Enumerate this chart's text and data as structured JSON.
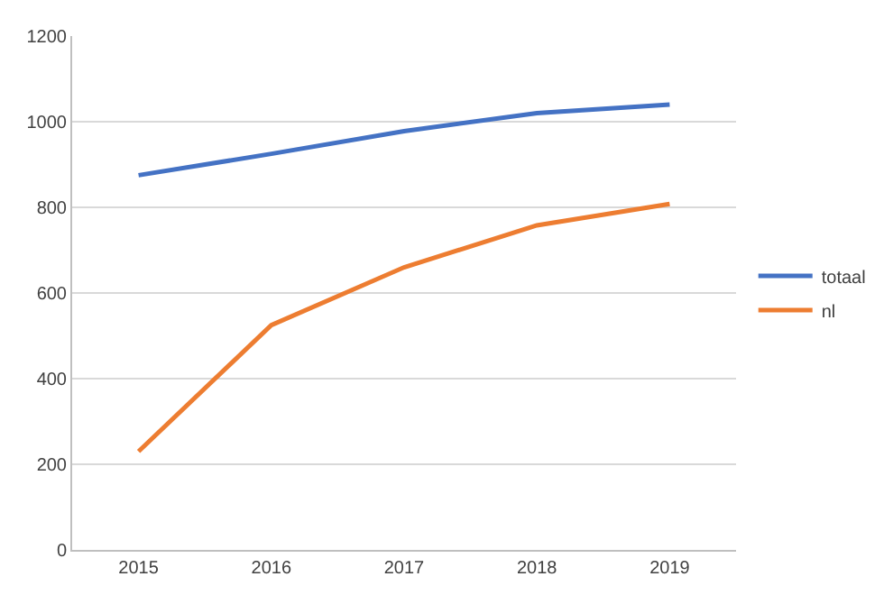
{
  "chart_data": {
    "type": "line",
    "categories": [
      "2015",
      "2016",
      "2017",
      "2018",
      "2019"
    ],
    "series": [
      {
        "name": "totaal",
        "color": "#4472c4",
        "values": [
          875,
          925,
          978,
          1020,
          1040
        ]
      },
      {
        "name": "nl",
        "color": "#ed7d31",
        "values": [
          230,
          525,
          660,
          758,
          808
        ]
      }
    ],
    "ylim": [
      0,
      1200
    ],
    "yticks": [
      0,
      200,
      400,
      600,
      800,
      1000,
      1200
    ],
    "grid": "y",
    "legend": "right",
    "marker": "none",
    "line_style": "solid"
  }
}
